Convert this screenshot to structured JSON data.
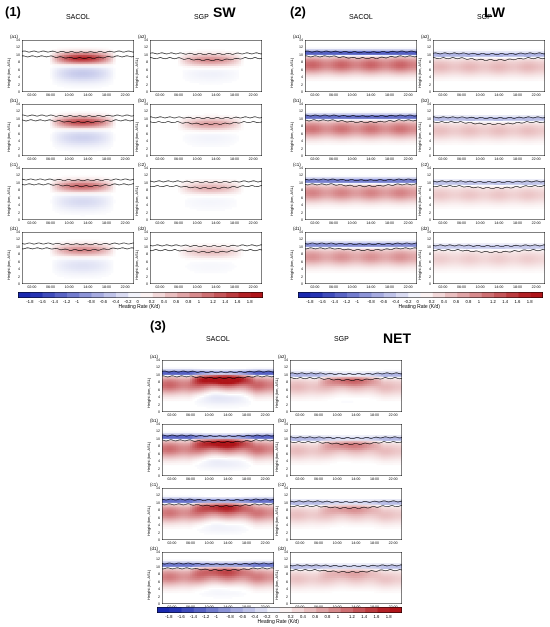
{
  "sections": [
    {
      "label": "(1)",
      "title": "SW",
      "kind": "sw"
    },
    {
      "label": "(2)",
      "title": "LW",
      "kind": "lw"
    },
    {
      "label": "(3)",
      "title": "NET",
      "kind": "net"
    }
  ],
  "sites": [
    "SACOL",
    "SGP"
  ],
  "panel_labels": [
    [
      "(a1)",
      "(a2)"
    ],
    [
      "(b1)",
      "(b2)"
    ],
    [
      "(c1)",
      "(c2)"
    ],
    [
      "(d1)",
      "(d2)"
    ]
  ],
  "y_axis_label": "Height (km, ASL)",
  "y_ticks": [
    "14",
    "12",
    "10",
    "8",
    "6",
    "4",
    "2",
    "0"
  ],
  "x_ticks": [
    "02:00",
    "06:00",
    "10:00",
    "14:00",
    "18:00",
    "22:00"
  ],
  "colorbar": {
    "title": "Heating Rate (K/d)",
    "ticks": [
      "-1.8",
      "-1.6",
      "-1.4",
      "-1.2",
      "-1",
      "-0.8",
      "-0.6",
      "-0.4",
      "-0.2",
      "0",
      "0.2",
      "0.4",
      "0.6",
      "0.8",
      "1",
      "1.2",
      "1.4",
      "1.6",
      "1.8"
    ]
  },
  "colors": {
    "negative": "#1f2fb0",
    "positive": "#c0181f",
    "boundary_line": "#000000"
  },
  "chart_data": {
    "type": "heatmap",
    "x_range": [
      "00:00",
      "24:00"
    ],
    "y_range": [
      0,
      14
    ],
    "color_range": [
      -1.8,
      1.8
    ]
  }
}
